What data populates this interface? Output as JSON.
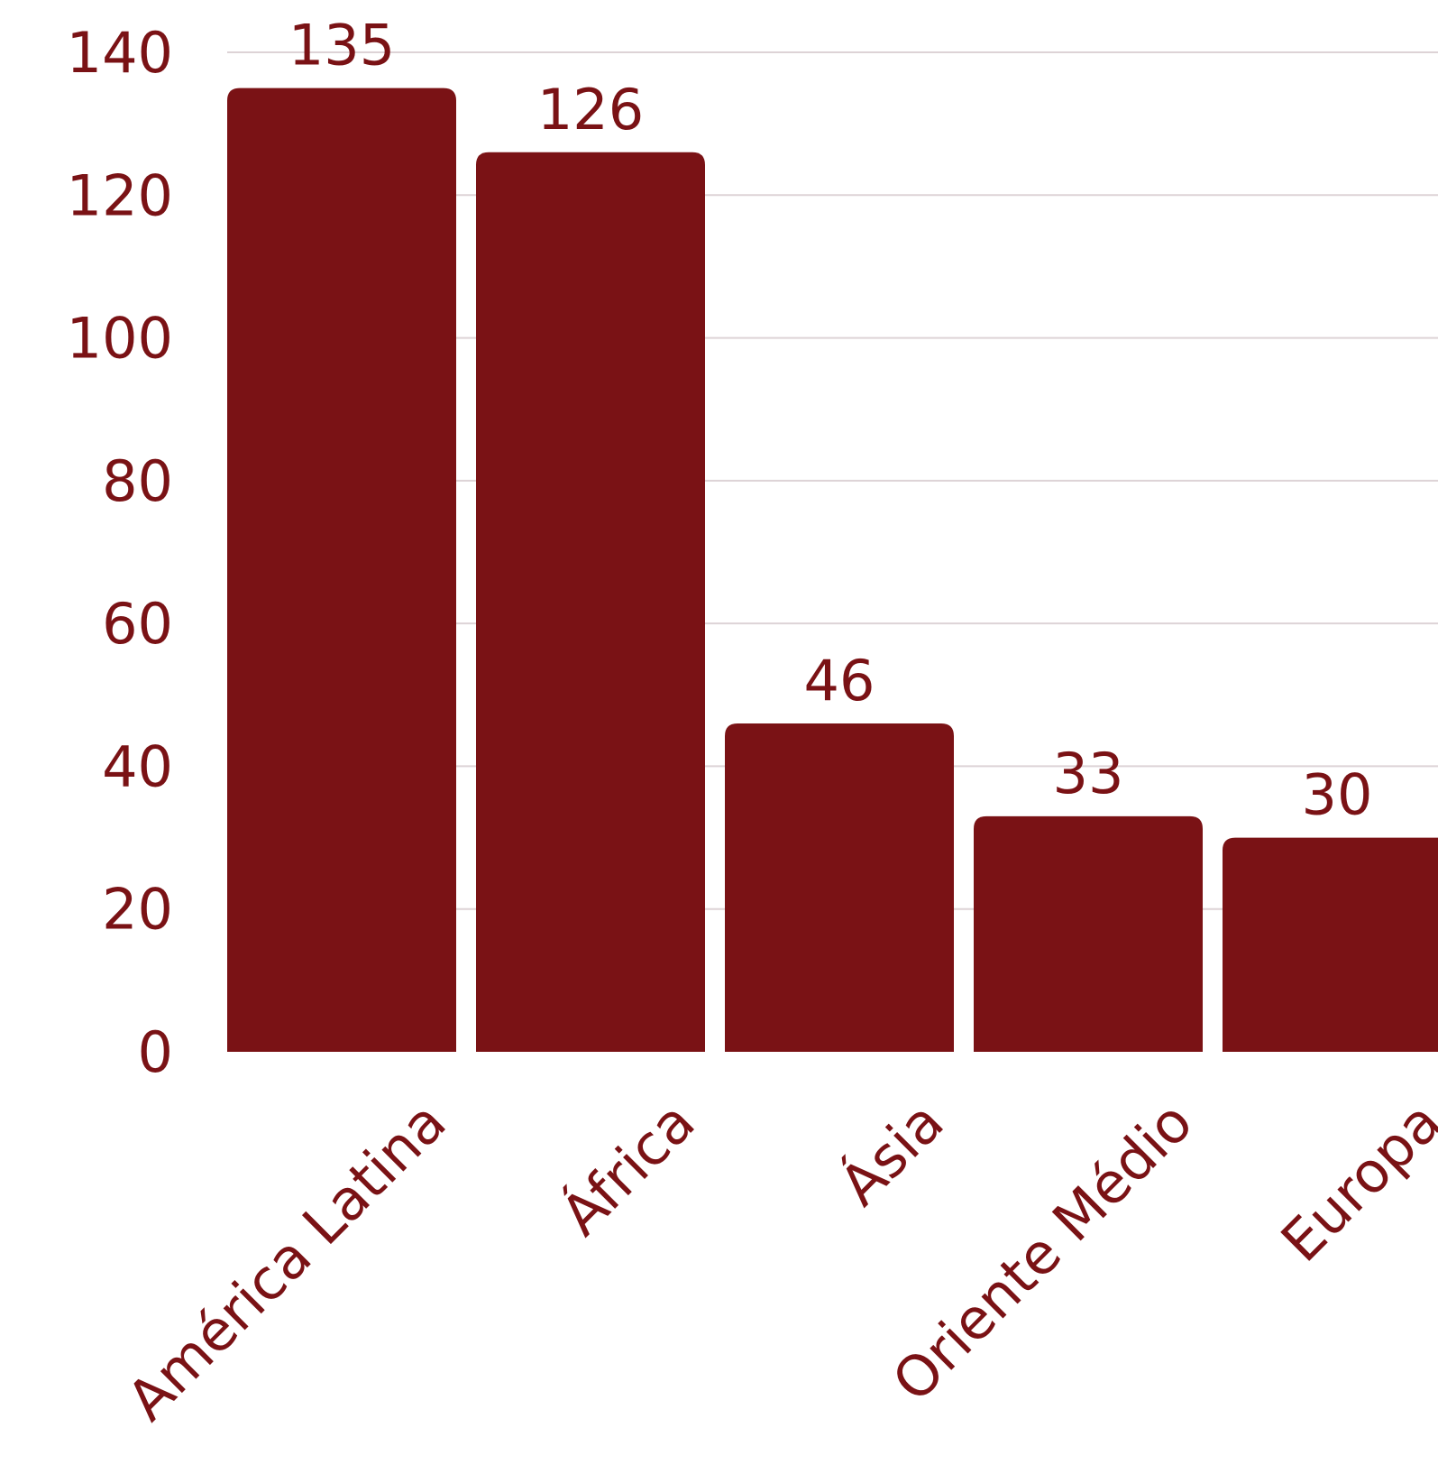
{
  "colors": {
    "bar": "#7a1215",
    "text": "#7a1215",
    "grid": "#ddd3d6"
  },
  "chart_data": {
    "type": "bar",
    "title": "",
    "xlabel": "",
    "ylabel": "",
    "categories": [
      "América Latina",
      "África",
      "Ásia",
      "Oriente Médio",
      "Europa"
    ],
    "values": [
      135,
      126,
      46,
      33,
      30
    ],
    "ylim": [
      0,
      140
    ],
    "yticks": [
      0,
      20,
      40,
      60,
      80,
      100,
      120,
      140
    ],
    "grid": true,
    "data_labels": true
  }
}
